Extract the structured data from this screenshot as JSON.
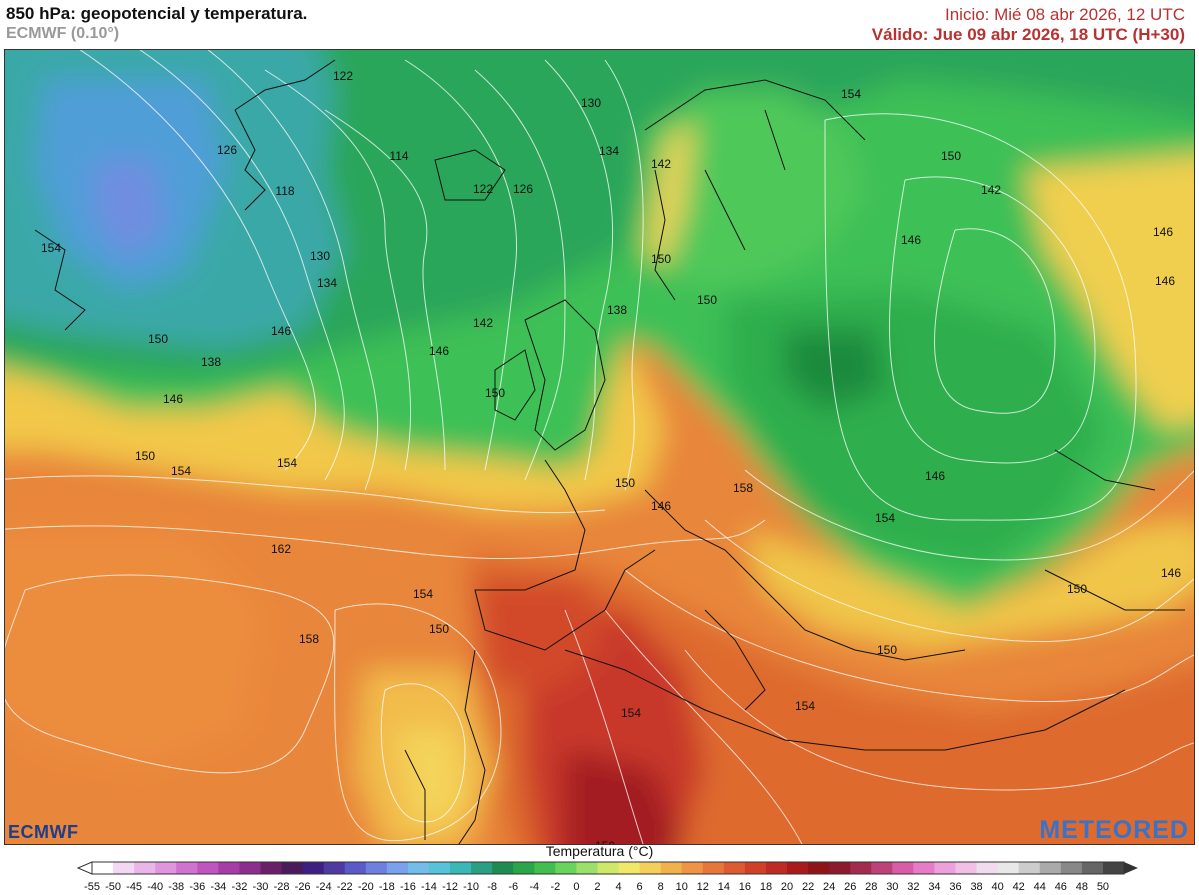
{
  "header": {
    "title": "850 hPa: geopotencial y temperatura.",
    "model": "ECMWF (0.10°)",
    "init": "Inicio: Mié 08 abr 2026, 12 UTC",
    "valid": "Válido: Jue 09 abr 2026, 18 UTC (H+30)"
  },
  "colorbar": {
    "title": "Temperatura (°C)",
    "labels": [
      "-55",
      "-50",
      "-45",
      "-40",
      "-38",
      "-36",
      "-34",
      "-32",
      "-30",
      "-28",
      "-26",
      "-24",
      "-22",
      "-20",
      "-18",
      "-16",
      "-14",
      "-12",
      "-10",
      "-8",
      "-6",
      "-4",
      "-2",
      "0",
      "2",
      "4",
      "6",
      "8",
      "10",
      "12",
      "14",
      "16",
      "18",
      "20",
      "22",
      "24",
      "26",
      "28",
      "30",
      "32",
      "34",
      "36",
      "38",
      "40",
      "42",
      "44",
      "46",
      "48",
      "50"
    ],
    "colors": [
      "#ffffff",
      "#f4d7f4",
      "#eab6ea",
      "#df96df",
      "#d072d0",
      "#bf55bf",
      "#a63ca6",
      "#8c2f8c",
      "#6a1f6a",
      "#4a1a5a",
      "#3e1f82",
      "#4e3aa0",
      "#5a5ac8",
      "#6f7fe0",
      "#7aa2ec",
      "#74bde8",
      "#56c4d8",
      "#39b8b5",
      "#2a9f84",
      "#1e8c52",
      "#2aa64a",
      "#41be4e",
      "#69d45c",
      "#9ae06a",
      "#cfe86a",
      "#f1e86a",
      "#f4d05a",
      "#f2b24a",
      "#ee9444",
      "#e8763a",
      "#de5a30",
      "#d04028",
      "#bf2a24",
      "#a81a1c",
      "#8e1418",
      "#8e1a2e",
      "#a42a4e",
      "#c0407a",
      "#da5ca6",
      "#e67cc8",
      "#eea0dc",
      "#f2c0e6",
      "#f0dcee",
      "#e8e8e8",
      "#cccccc",
      "#aaaaaa",
      "#888888",
      "#666666",
      "#444444"
    ]
  },
  "map": {
    "contour_labels": [
      "122",
      "130",
      "126",
      "114",
      "134",
      "142",
      "154",
      "118",
      "122",
      "126",
      "150",
      "142",
      "154",
      "146",
      "146",
      "130",
      "134",
      "138",
      "142",
      "146",
      "146",
      "150",
      "138",
      "150",
      "146",
      "150",
      "150",
      "154",
      "150",
      "158",
      "154",
      "154",
      "146",
      "162",
      "154",
      "150",
      "158",
      "150",
      "150",
      "154",
      "154",
      "146",
      "146",
      "150",
      "150",
      "146"
    ]
  },
  "logos": {
    "left": "ECMWF",
    "right": "METEORED"
  }
}
